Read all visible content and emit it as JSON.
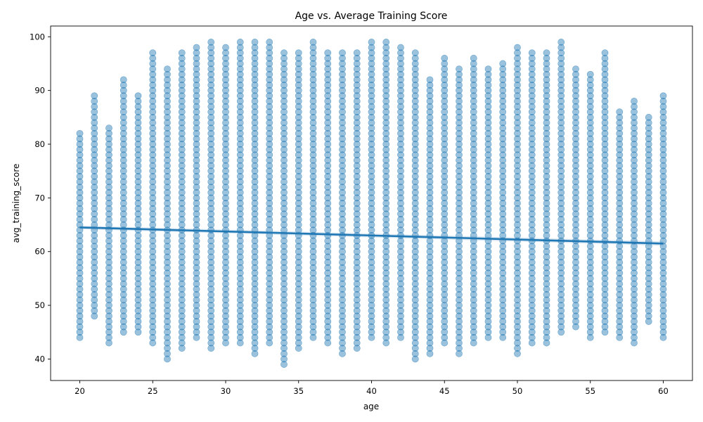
{
  "chart_data": {
    "type": "scatter",
    "title": "Age vs. Average Training Score",
    "xlabel": "age",
    "ylabel": "avg_training_score",
    "xlim": [
      18,
      62
    ],
    "ylim": [
      36,
      102
    ],
    "xticks": [
      20,
      25,
      30,
      35,
      40,
      45,
      50,
      55,
      60
    ],
    "yticks": [
      40,
      50,
      60,
      70,
      80,
      90,
      100
    ],
    "grid": false,
    "legend": "none",
    "colors": {
      "points": "#1f77b4",
      "trend": "#1f77b4"
    },
    "point_alpha": 0.45,
    "ages": [
      20,
      21,
      22,
      23,
      24,
      25,
      26,
      27,
      28,
      29,
      30,
      31,
      32,
      33,
      34,
      35,
      36,
      37,
      38,
      39,
      40,
      41,
      42,
      43,
      44,
      45,
      46,
      47,
      48,
      49,
      50,
      51,
      52,
      53,
      54,
      55,
      56,
      57,
      58,
      59,
      60
    ],
    "score_range_by_age": [
      [
        44,
        82
      ],
      [
        48,
        89
      ],
      [
        43,
        83
      ],
      [
        45,
        92
      ],
      [
        45,
        89
      ],
      [
        43,
        97
      ],
      [
        40,
        94
      ],
      [
        42,
        97
      ],
      [
        44,
        98
      ],
      [
        42,
        99
      ],
      [
        43,
        98
      ],
      [
        43,
        99
      ],
      [
        41,
        99
      ],
      [
        43,
        99
      ],
      [
        39,
        97
      ],
      [
        42,
        97
      ],
      [
        44,
        99
      ],
      [
        43,
        97
      ],
      [
        41,
        97
      ],
      [
        42,
        97
      ],
      [
        44,
        99
      ],
      [
        43,
        99
      ],
      [
        44,
        98
      ],
      [
        40,
        97
      ],
      [
        41,
        92
      ],
      [
        43,
        96
      ],
      [
        41,
        94
      ],
      [
        43,
        96
      ],
      [
        44,
        94
      ],
      [
        44,
        95
      ],
      [
        41,
        98
      ],
      [
        43,
        97
      ],
      [
        43,
        97
      ],
      [
        45,
        99
      ],
      [
        46,
        94
      ],
      [
        44,
        93
      ],
      [
        45,
        97
      ],
      [
        44,
        86
      ],
      [
        43,
        88
      ],
      [
        47,
        85
      ],
      [
        44,
        89
      ]
    ],
    "trend_line": {
      "x": [
        20,
        60
      ],
      "y": [
        64.5,
        61.5
      ]
    }
  }
}
